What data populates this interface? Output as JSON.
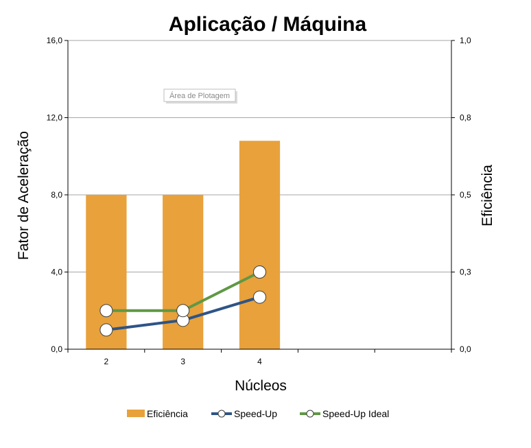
{
  "chart_data": {
    "type": "bar",
    "title": "Aplicação / Máquina",
    "xlabel": "Núcleos",
    "ylabel": "Fator de Aceleração",
    "y2label": "Eficiência",
    "categories": [
      "2",
      "3",
      "4"
    ],
    "category_slots": 5,
    "ylim": [
      0,
      16
    ],
    "y2lim": [
      0,
      1
    ],
    "yticks": [
      "0,0",
      "4,0",
      "8,0",
      "12,0",
      "16,0"
    ],
    "y2ticks": [
      "0,0",
      "0,3",
      "0,5",
      "0,8",
      "1,0"
    ],
    "grid": true,
    "legend_position": "bottom",
    "series": [
      {
        "name": "Eficiência",
        "kind": "bar",
        "axis": "right",
        "color": "#E8A13B",
        "values": [
          0.5,
          0.5,
          0.675
        ]
      },
      {
        "name": "Speed-Up",
        "kind": "line",
        "axis": "left",
        "color": "#2E5487",
        "values": [
          1.0,
          1.5,
          2.7
        ]
      },
      {
        "name": "Speed-Up Ideal",
        "kind": "line",
        "axis": "left",
        "color": "#5F9845",
        "values": [
          2.0,
          2.0,
          4.0
        ]
      }
    ]
  },
  "tooltip": {
    "label": "Área de Plotagem"
  }
}
